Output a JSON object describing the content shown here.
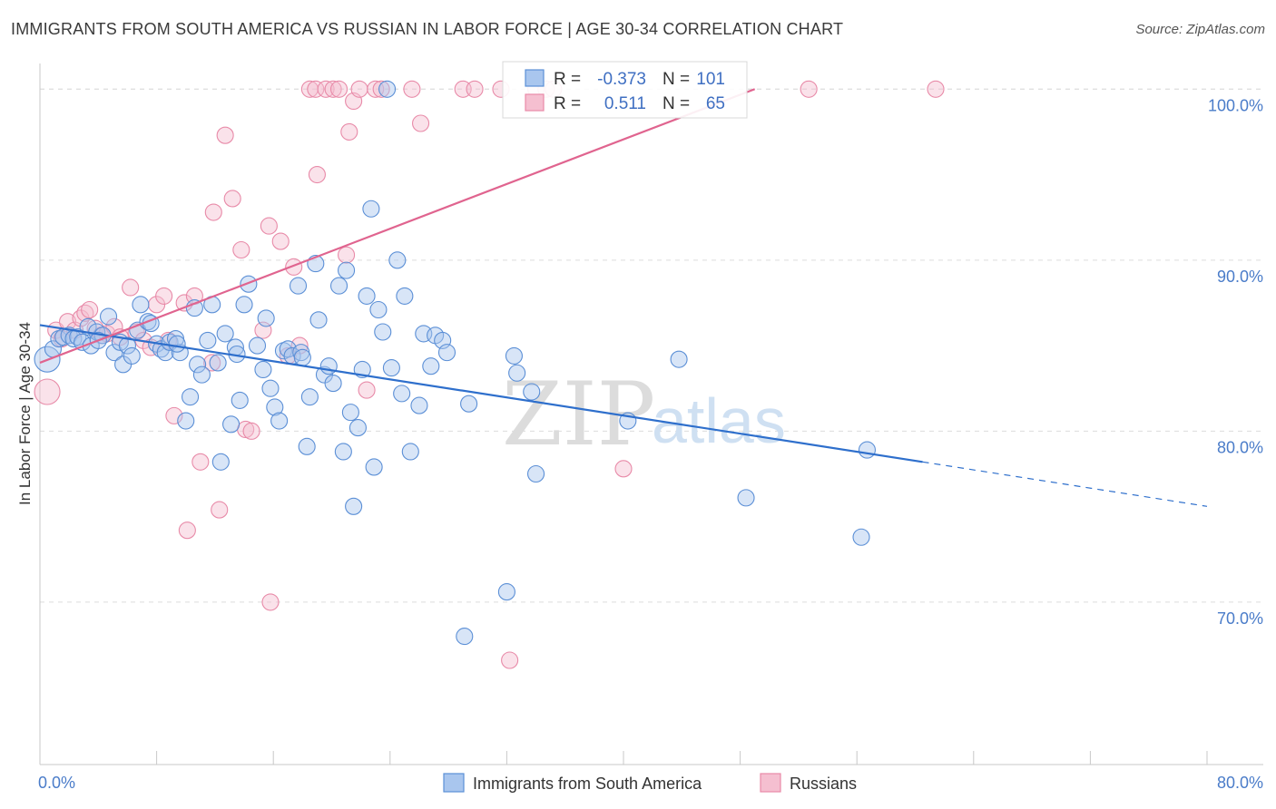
{
  "header": {
    "title": "IMMIGRANTS FROM SOUTH AMERICA VS RUSSIAN IN LABOR FORCE | AGE 30-34 CORRELATION CHART",
    "source": "Source: ZipAtlas.com"
  },
  "watermark": {
    "zip": "ZIP",
    "atlas": "atlas"
  },
  "stats_box": {
    "rows": [
      {
        "r_label": "R =",
        "r_value": "-0.373",
        "n_label": "N =",
        "n_value": "101"
      },
      {
        "r_label": "R =",
        "r_value": "0.511",
        "n_label": "N =",
        "n_value": "65"
      }
    ]
  },
  "colors": {
    "blue_fill": "#a9c6ee",
    "blue_stroke": "#5b8fd6",
    "blue_line": "#2e6fcc",
    "pink_fill": "#f5bfd0",
    "pink_stroke": "#e88aa8",
    "pink_line": "#e0648f",
    "grid": "#dcdcdc",
    "tick_text": "#4a7cc9"
  },
  "chart_data": {
    "type": "scatter",
    "title": "IMMIGRANTS FROM SOUTH AMERICA VS RUSSIAN IN LABOR FORCE | AGE 30-34 CORRELATION CHART",
    "xlabel": "",
    "ylabel": "In Labor Force | Age 30-34",
    "xlim": [
      0,
      80
    ],
    "ylim": [
      60.5,
      101.5
    ],
    "x_tick_labels": [
      "0.0%",
      "80.0%"
    ],
    "y_ticks": [
      70,
      80,
      90,
      100
    ],
    "y_tick_labels": [
      "70.0%",
      "80.0%",
      "90.0%",
      "100.0%"
    ],
    "grid": true,
    "legend": [
      "Immigrants from South America",
      "Russians"
    ],
    "series": [
      {
        "name": "Immigrants from South America",
        "r": -0.373,
        "n": 101,
        "trend": {
          "x0": 0.0,
          "y0": 86.2,
          "x1": 60.5,
          "y1": 78.2,
          "dash_to_x": 80.0,
          "dash_to_y": 75.6
        },
        "points": [
          [
            0.5,
            84.2
          ],
          [
            0.9,
            84.8
          ],
          [
            1.3,
            85.4
          ],
          [
            1.6,
            85.5
          ],
          [
            2.0,
            85.6
          ],
          [
            2.3,
            85.4
          ],
          [
            2.6,
            85.5
          ],
          [
            2.9,
            85.2
          ],
          [
            3.3,
            86.1
          ],
          [
            3.5,
            85.0
          ],
          [
            3.9,
            85.8
          ],
          [
            4.3,
            85.6
          ],
          [
            4.7,
            86.7
          ],
          [
            5.1,
            84.6
          ],
          [
            5.5,
            85.2
          ],
          [
            5.7,
            83.9
          ],
          [
            6.0,
            85.0
          ],
          [
            6.3,
            84.4
          ],
          [
            6.7,
            85.9
          ],
          [
            6.9,
            87.4
          ],
          [
            7.4,
            86.4
          ],
          [
            7.6,
            86.3
          ],
          [
            8.0,
            85.1
          ],
          [
            8.3,
            84.8
          ],
          [
            8.6,
            84.6
          ],
          [
            8.9,
            85.2
          ],
          [
            9.3,
            85.4
          ],
          [
            9.6,
            84.6
          ],
          [
            10.0,
            80.6
          ],
          [
            10.3,
            82.0
          ],
          [
            10.6,
            87.2
          ],
          [
            10.8,
            83.9
          ],
          [
            11.1,
            83.3
          ],
          [
            11.5,
            85.3
          ],
          [
            11.8,
            87.4
          ],
          [
            12.2,
            84.0
          ],
          [
            12.4,
            78.2
          ],
          [
            12.7,
            85.7
          ],
          [
            13.1,
            80.4
          ],
          [
            13.4,
            84.9
          ],
          [
            13.7,
            81.8
          ],
          [
            14.0,
            87.4
          ],
          [
            14.3,
            88.6
          ],
          [
            14.9,
            85.0
          ],
          [
            15.3,
            83.6
          ],
          [
            15.5,
            86.6
          ],
          [
            15.8,
            82.5
          ],
          [
            16.1,
            81.4
          ],
          [
            16.4,
            80.6
          ],
          [
            16.7,
            84.7
          ],
          [
            17.0,
            84.8
          ],
          [
            17.3,
            84.4
          ],
          [
            17.7,
            88.5
          ],
          [
            17.9,
            84.6
          ],
          [
            18.3,
            79.1
          ],
          [
            18.5,
            82.0
          ],
          [
            18.9,
            89.8
          ],
          [
            19.1,
            86.5
          ],
          [
            19.5,
            83.3
          ],
          [
            19.8,
            83.8
          ],
          [
            20.1,
            82.8
          ],
          [
            20.5,
            88.5
          ],
          [
            20.8,
            78.8
          ],
          [
            21.0,
            89.4
          ],
          [
            21.3,
            81.1
          ],
          [
            21.8,
            80.2
          ],
          [
            22.1,
            83.6
          ],
          [
            22.4,
            87.9
          ],
          [
            22.7,
            93.0
          ],
          [
            22.9,
            77.9
          ],
          [
            23.2,
            87.1
          ],
          [
            23.5,
            85.8
          ],
          [
            23.8,
            100.0
          ],
          [
            24.1,
            83.7
          ],
          [
            24.5,
            90.0
          ],
          [
            24.8,
            82.2
          ],
          [
            25.0,
            87.9
          ],
          [
            25.4,
            78.8
          ],
          [
            26.0,
            81.5
          ],
          [
            26.3,
            85.7
          ],
          [
            26.8,
            83.8
          ],
          [
            27.1,
            85.6
          ],
          [
            27.6,
            85.3
          ],
          [
            27.9,
            84.6
          ],
          [
            29.1,
            68.0
          ],
          [
            29.4,
            81.6
          ],
          [
            32.0,
            70.6
          ],
          [
            32.5,
            84.4
          ],
          [
            32.7,
            83.4
          ],
          [
            33.7,
            82.3
          ],
          [
            34.0,
            77.5
          ],
          [
            40.3,
            80.6
          ],
          [
            43.8,
            84.2
          ],
          [
            48.4,
            76.1
          ],
          [
            56.3,
            73.8
          ],
          [
            56.7,
            78.9
          ],
          [
            13.5,
            84.5
          ],
          [
            18.0,
            84.3
          ],
          [
            21.5,
            75.6
          ],
          [
            9.4,
            85.1
          ],
          [
            4.0,
            85.3
          ]
        ]
      },
      {
        "name": "Russians",
        "r": 0.511,
        "n": 65,
        "trend": {
          "x0": 0.0,
          "y0": 84.0,
          "x1": 49.0,
          "y1": 100.0
        },
        "points": [
          [
            0.5,
            82.3
          ],
          [
            1.1,
            85.9
          ],
          [
            1.5,
            85.4
          ],
          [
            1.9,
            86.4
          ],
          [
            2.4,
            85.9
          ],
          [
            2.8,
            86.6
          ],
          [
            3.1,
            86.9
          ],
          [
            3.4,
            87.1
          ],
          [
            3.8,
            86.0
          ],
          [
            4.2,
            85.6
          ],
          [
            4.6,
            85.7
          ],
          [
            5.1,
            86.1
          ],
          [
            5.5,
            85.5
          ],
          [
            6.2,
            88.4
          ],
          [
            6.6,
            85.8
          ],
          [
            7.1,
            85.3
          ],
          [
            7.6,
            84.9
          ],
          [
            8.0,
            87.4
          ],
          [
            8.5,
            87.9
          ],
          [
            8.8,
            85.3
          ],
          [
            9.2,
            80.9
          ],
          [
            9.9,
            87.5
          ],
          [
            10.1,
            74.2
          ],
          [
            10.6,
            87.9
          ],
          [
            11.0,
            78.2
          ],
          [
            11.8,
            84.0
          ],
          [
            11.9,
            92.8
          ],
          [
            12.3,
            75.4
          ],
          [
            12.7,
            97.3
          ],
          [
            13.2,
            93.6
          ],
          [
            13.8,
            90.6
          ],
          [
            14.1,
            80.1
          ],
          [
            14.5,
            80.0
          ],
          [
            15.3,
            85.9
          ],
          [
            15.7,
            92.0
          ],
          [
            15.8,
            70.0
          ],
          [
            16.5,
            91.1
          ],
          [
            17.0,
            84.4
          ],
          [
            17.4,
            89.6
          ],
          [
            17.8,
            85.0
          ],
          [
            18.5,
            100.0
          ],
          [
            18.9,
            100.0
          ],
          [
            19.0,
            95.0
          ],
          [
            19.6,
            100.0
          ],
          [
            20.1,
            100.0
          ],
          [
            20.5,
            100.0
          ],
          [
            21.0,
            90.3
          ],
          [
            21.2,
            97.5
          ],
          [
            21.5,
            99.3
          ],
          [
            21.9,
            100.0
          ],
          [
            22.4,
            82.4
          ],
          [
            23.0,
            100.0
          ],
          [
            23.4,
            100.0
          ],
          [
            25.5,
            100.0
          ],
          [
            26.1,
            98.0
          ],
          [
            29.0,
            100.0
          ],
          [
            29.8,
            100.0
          ],
          [
            31.6,
            100.0
          ],
          [
            32.2,
            66.6
          ],
          [
            34.0,
            100.0
          ],
          [
            34.7,
            100.0
          ],
          [
            35.2,
            100.0
          ],
          [
            40.0,
            77.8
          ],
          [
            52.7,
            100.0
          ],
          [
            61.4,
            100.0
          ]
        ]
      }
    ]
  }
}
